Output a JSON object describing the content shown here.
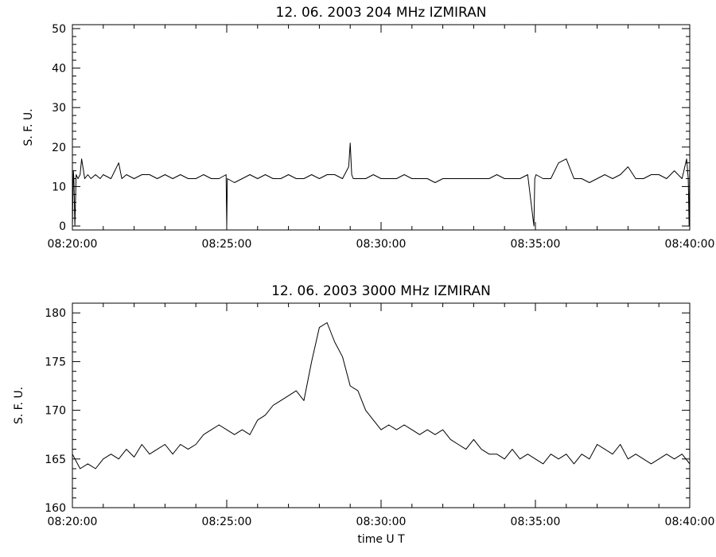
{
  "chart_data": [
    {
      "type": "line",
      "title": "12. 06. 2003   204 MHz   IZMIRAN",
      "ylabel": "S. F. U.",
      "xlabel": "",
      "x_tick_labels": [
        "08:20:00",
        "08:25:00",
        "08:30:00",
        "08:35:00",
        "08:40:00"
      ],
      "x_tick_minutes": [
        0,
        5,
        10,
        15,
        20
      ],
      "xlim_minutes": [
        0,
        20
      ],
      "x_unit": "minutes after 08:20:00 UT",
      "y_ticks": [
        0,
        10,
        20,
        30,
        40,
        50
      ],
      "ylim": [
        -1,
        51
      ],
      "grid": false,
      "series": [
        {
          "x": [
            0,
            0.03,
            0.05,
            0.08,
            0.12,
            0.18,
            0.25,
            0.3,
            0.4,
            0.5,
            0.6,
            0.75,
            0.9,
            1.0,
            1.25,
            1.5,
            1.6,
            1.75,
            2.0,
            2.25,
            2.5,
            2.75,
            3.0,
            3.25,
            3.5,
            3.75,
            4.0,
            4.25,
            4.5,
            4.75,
            4.98,
            5.0,
            5.02,
            5.25,
            5.5,
            5.75,
            6.0,
            6.25,
            6.5,
            6.75,
            7.0,
            7.25,
            7.5,
            7.75,
            8.0,
            8.25,
            8.5,
            8.75,
            8.95,
            9.0,
            9.05,
            9.1,
            9.25,
            9.5,
            9.75,
            10.0,
            10.25,
            10.5,
            10.75,
            11.0,
            11.25,
            11.5,
            11.75,
            12.0,
            12.25,
            12.5,
            12.75,
            13.0,
            13.25,
            13.5,
            13.75,
            14.0,
            14.25,
            14.5,
            14.75,
            14.95,
            14.98,
            15.02,
            15.25,
            15.5,
            15.75,
            16.0,
            16.25,
            16.5,
            16.75,
            17.0,
            17.25,
            17.5,
            17.75,
            18.0,
            18.25,
            18.5,
            18.75,
            19.0,
            19.25,
            19.5,
            19.75,
            19.9,
            19.95,
            19.98,
            20.0
          ],
          "y": [
            0,
            14,
            12,
            0,
            13,
            12,
            13,
            17,
            12,
            13,
            12,
            13,
            12,
            13,
            12,
            16,
            12,
            13,
            12,
            13,
            13,
            12,
            13,
            12,
            13,
            12,
            12,
            13,
            12,
            12,
            13,
            0,
            12,
            11,
            12,
            13,
            12,
            13,
            12,
            12,
            13,
            12,
            12,
            13,
            12,
            13,
            13,
            12,
            15,
            21,
            13,
            12,
            12,
            12,
            13,
            12,
            12,
            12,
            13,
            12,
            12,
            12,
            11,
            12,
            12,
            12,
            12,
            12,
            12,
            12,
            13,
            12,
            12,
            12,
            13,
            0,
            12,
            13,
            12,
            12,
            16,
            17,
            12,
            12,
            11,
            12,
            13,
            12,
            13,
            15,
            12,
            12,
            13,
            13,
            12,
            14,
            12,
            17,
            12,
            0,
            16
          ]
        }
      ]
    },
    {
      "type": "line",
      "title": "12. 06. 2003   3000 MHz   IZMIRAN",
      "ylabel": "S. F. U.",
      "xlabel": "time   U T",
      "x_tick_labels": [
        "08:20:00",
        "08:25:00",
        "08:30:00",
        "08:35:00",
        "08:40:00"
      ],
      "x_tick_minutes": [
        0,
        5,
        10,
        15,
        20
      ],
      "xlim_minutes": [
        0,
        20
      ],
      "x_unit": "minutes after 08:20:00 UT",
      "y_ticks": [
        160,
        165,
        170,
        175,
        180
      ],
      "ylim": [
        160,
        181
      ],
      "grid": false,
      "series": [
        {
          "x": [
            0,
            0.25,
            0.5,
            0.75,
            1.0,
            1.25,
            1.5,
            1.75,
            2.0,
            2.25,
            2.5,
            2.75,
            3.0,
            3.25,
            3.5,
            3.75,
            4.0,
            4.25,
            4.5,
            4.75,
            5.0,
            5.25,
            5.5,
            5.75,
            6.0,
            6.25,
            6.5,
            6.75,
            7.0,
            7.25,
            7.5,
            7.75,
            8.0,
            8.25,
            8.5,
            8.75,
            9.0,
            9.25,
            9.5,
            9.75,
            10.0,
            10.25,
            10.5,
            10.75,
            11.0,
            11.25,
            11.5,
            11.75,
            12.0,
            12.25,
            12.5,
            12.75,
            13.0,
            13.25,
            13.5,
            13.75,
            14.0,
            14.25,
            14.5,
            14.75,
            15.0,
            15.25,
            15.5,
            15.75,
            16.0,
            16.25,
            16.5,
            16.75,
            17.0,
            17.25,
            17.5,
            17.75,
            18.0,
            18.25,
            18.5,
            18.75,
            19.0,
            19.25,
            19.5,
            19.75,
            20.0
          ],
          "y": [
            165.5,
            164.0,
            164.5,
            164.0,
            165.0,
            165.5,
            165.0,
            166.0,
            165.2,
            166.5,
            165.5,
            166.0,
            166.5,
            165.5,
            166.5,
            166.0,
            166.5,
            167.5,
            168.0,
            168.5,
            168.0,
            167.5,
            168.0,
            167.5,
            169.0,
            169.5,
            170.5,
            171.0,
            171.5,
            172.0,
            171.0,
            175.0,
            178.5,
            179.0,
            177.0,
            175.5,
            172.5,
            172.0,
            170.0,
            169.0,
            168.0,
            168.5,
            168.0,
            168.5,
            168.0,
            167.5,
            168.0,
            167.5,
            168.0,
            167.0,
            166.5,
            166.0,
            167.0,
            166.0,
            165.5,
            165.5,
            165.0,
            166.0,
            165.0,
            165.5,
            165.0,
            164.5,
            165.5,
            165.0,
            165.5,
            164.5,
            165.5,
            165.0,
            166.5,
            166.0,
            165.5,
            166.5,
            165.0,
            165.5,
            165.0,
            164.5,
            165.0,
            165.5,
            165.0,
            165.5,
            164.5
          ]
        }
      ]
    }
  ]
}
